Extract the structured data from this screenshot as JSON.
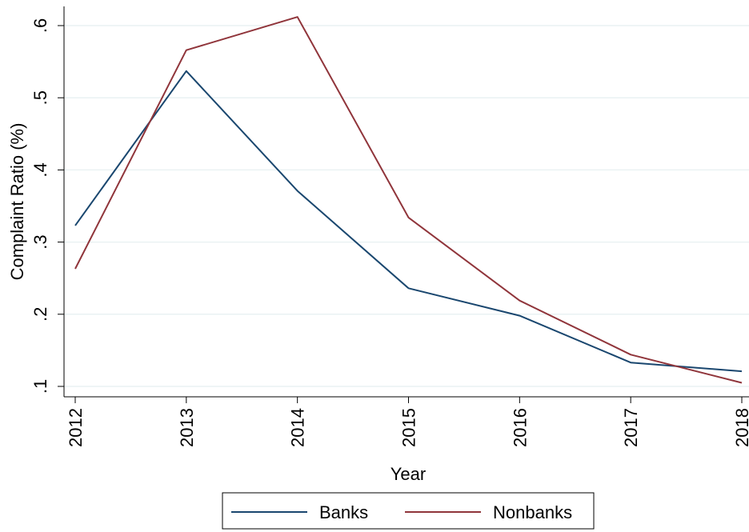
{
  "chart_data": {
    "type": "line",
    "xlabel": "Year",
    "ylabel": "Complaint Ratio (%)",
    "x": [
      2012,
      2013,
      2014,
      2015,
      2016,
      2017,
      2018
    ],
    "x_tick_labels": [
      "2012",
      "2013",
      "2014",
      "2015",
      "2016",
      "2017",
      "2018"
    ],
    "y_ticks": [
      0.1,
      0.2,
      0.3,
      0.4,
      0.5,
      0.6
    ],
    "y_tick_labels": [
      ".1",
      ".2",
      ".3",
      ".4",
      ".5",
      ".6"
    ],
    "ylim": [
      0.09,
      0.625
    ],
    "grid": true,
    "legend_position": "bottom",
    "series": [
      {
        "name": "Banks",
        "color": "#1a476f",
        "values": [
          0.323,
          0.537,
          0.371,
          0.236,
          0.198,
          0.133,
          0.121
        ]
      },
      {
        "name": "Nonbanks",
        "color": "#90353b",
        "values": [
          0.263,
          0.566,
          0.612,
          0.334,
          0.219,
          0.144,
          0.105
        ]
      }
    ]
  }
}
